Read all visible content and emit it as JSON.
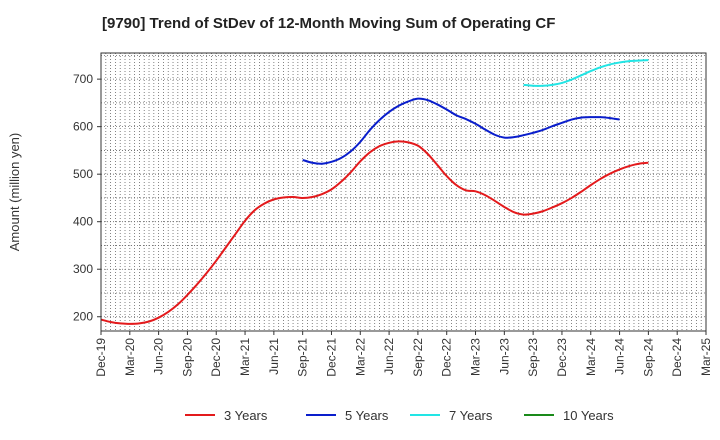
{
  "chart_data": {
    "type": "line",
    "title": "[9790]  Trend of StDev of 12-Month Moving Sum of Operating CF",
    "xlabel": "",
    "ylabel": "Amount (million yen)",
    "ylim": [
      170,
      755
    ],
    "yticks": [
      200,
      300,
      400,
      500,
      600,
      700
    ],
    "xlim": [
      "Dec-19",
      "Mar-25"
    ],
    "x_tick_labels": [
      "Dec-19",
      "Mar-20",
      "Jun-20",
      "Sep-20",
      "Dec-20",
      "Mar-21",
      "Jun-21",
      "Sep-21",
      "Dec-21",
      "Mar-22",
      "Jun-22",
      "Sep-22",
      "Dec-22",
      "Mar-23",
      "Jun-23",
      "Sep-23",
      "Dec-23",
      "Mar-24",
      "Jun-24",
      "Sep-24",
      "Dec-24",
      "Mar-25"
    ],
    "grid": true,
    "legend_position": "bottom",
    "series": [
      {
        "name": "3 Years",
        "color": "#e31a1c",
        "x": [
          "Dec-19",
          "Jan-20",
          "Feb-20",
          "Mar-20",
          "Apr-20",
          "May-20",
          "Jun-20",
          "Jul-20",
          "Aug-20",
          "Sep-20",
          "Oct-20",
          "Nov-20",
          "Dec-20",
          "Jan-21",
          "Feb-21",
          "Mar-21",
          "Apr-21",
          "May-21",
          "Jun-21",
          "Jul-21",
          "Aug-21",
          "Sep-21",
          "Oct-21",
          "Nov-21",
          "Dec-21",
          "Jan-22",
          "Feb-22",
          "Mar-22",
          "Apr-22",
          "May-22",
          "Jun-22",
          "Jul-22",
          "Aug-22",
          "Sep-22",
          "Oct-22",
          "Nov-22",
          "Dec-22",
          "Jan-23",
          "Feb-23",
          "Mar-23",
          "Apr-23",
          "May-23",
          "Jun-23",
          "Jul-23",
          "Aug-23",
          "Sep-23",
          "Oct-23",
          "Nov-23",
          "Dec-23",
          "Jan-24",
          "Feb-24",
          "Mar-24",
          "Apr-24",
          "May-24",
          "Jun-24",
          "Jul-24",
          "Aug-24",
          "Sep-24"
        ],
        "values": [
          194,
          189,
          186,
          185,
          186,
          190,
          198,
          210,
          226,
          246,
          268,
          292,
          318,
          346,
          374,
          402,
          424,
          438,
          447,
          451,
          452,
          450,
          452,
          458,
          468,
          484,
          504,
          527,
          546,
          559,
          566,
          569,
          567,
          560,
          543,
          520,
          496,
          477,
          466,
          464,
          456,
          444,
          431,
          420,
          415,
          417,
          422,
          430,
          439,
          450,
          463,
          477,
          490,
          501,
          510,
          517,
          522,
          524
        ]
      },
      {
        "name": "5 Years",
        "color": "#0a1ecc",
        "x": [
          "Dec-21",
          "Jan-22",
          "Feb-22",
          "Mar-22",
          "Apr-22",
          "May-22",
          "Jun-22",
          "Jul-22",
          "Aug-22",
          "Sep-22",
          "Oct-22",
          "Nov-22",
          "Dec-22",
          "Jan-23",
          "Feb-23",
          "Mar-23",
          "Apr-23",
          "May-23",
          "Jun-23",
          "Jul-23",
          "Aug-23",
          "Sep-23",
          "Oct-23",
          "Nov-23",
          "Dec-23",
          "Jan-24",
          "Feb-24",
          "Mar-24",
          "Apr-24",
          "May-24",
          "Jun-24",
          "Jul-24",
          "Aug-24",
          "Sep-24"
        ],
        "values": [
          530,
          524,
          522,
          526,
          534,
          548,
          568,
          593,
          614,
          631,
          644,
          653,
          659,
          656,
          647,
          636,
          624,
          616,
          606,
          594,
          583,
          577,
          578,
          582,
          587,
          593,
          601,
          608,
          615,
          619,
          620,
          620,
          618,
          615
        ],
        "x_offset_months": -3
      },
      {
        "name": "7 Years",
        "color": "#22e5e5",
        "x": [
          "Aug-23",
          "Sep-23",
          "Oct-23",
          "Nov-23",
          "Dec-23",
          "Jan-24",
          "Feb-24",
          "Mar-24",
          "Apr-24",
          "May-24",
          "Jun-24",
          "Jul-24",
          "Aug-24",
          "Sep-24"
        ],
        "values": [
          688,
          686,
          686,
          688,
          692,
          699,
          708,
          717,
          725,
          731,
          735,
          738,
          739,
          740
        ]
      },
      {
        "name": "10 Years",
        "color": "#1a8a1a",
        "x": [],
        "values": []
      }
    ]
  }
}
